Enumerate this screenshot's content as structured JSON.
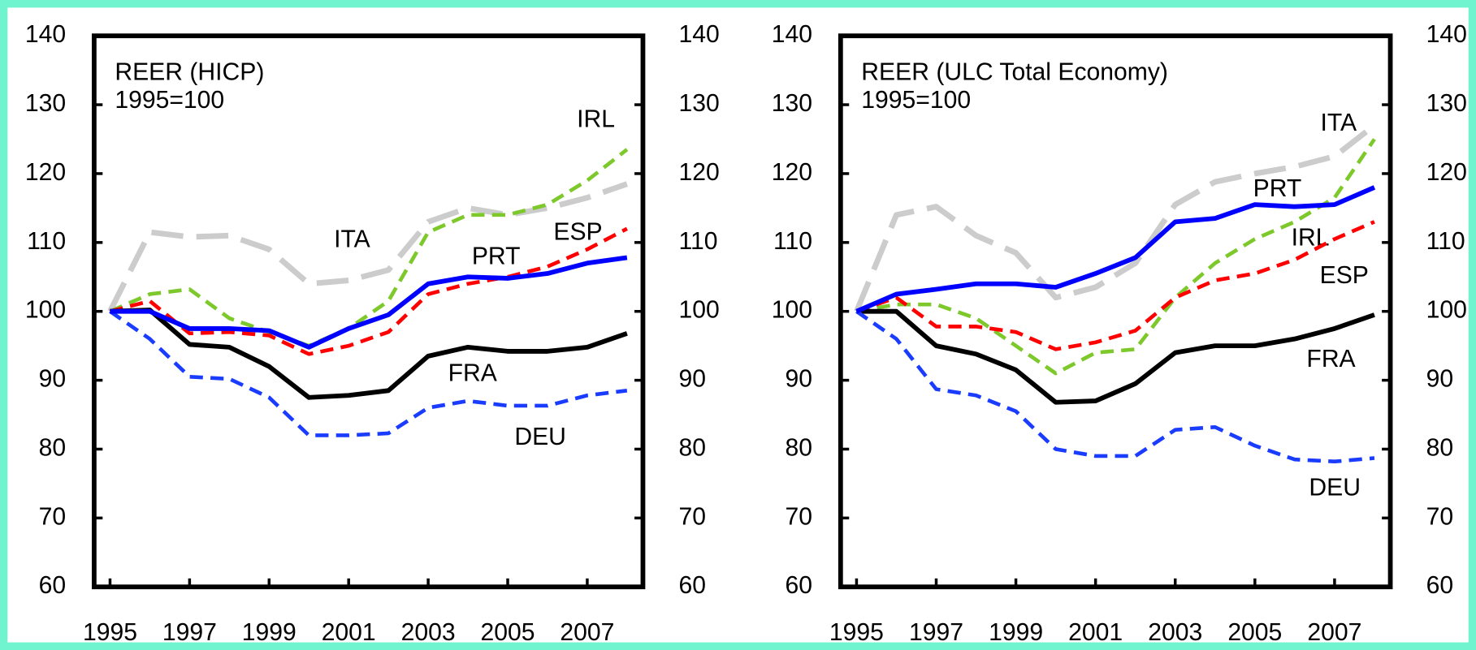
{
  "chart_data": [
    {
      "type": "line",
      "title": "REER (HICP)",
      "subtitle": "1995=100",
      "x": [
        1995,
        1996,
        1997,
        1998,
        1999,
        2000,
        2001,
        2002,
        2003,
        2004,
        2005,
        2006,
        2007,
        2008
      ],
      "xlim": [
        1994.6,
        2008.4
      ],
      "xticks": [
        1995,
        1997,
        1999,
        2001,
        2003,
        2005,
        2007
      ],
      "ylim": [
        60,
        140
      ],
      "yticks": [
        60,
        70,
        80,
        90,
        100,
        110,
        120,
        130,
        140
      ],
      "y2lim": [
        60,
        140
      ],
      "y2ticks": [
        60,
        70,
        80,
        90,
        100,
        110,
        120,
        130,
        140
      ],
      "series": [
        {
          "name": "ITA",
          "color": "#cccccc",
          "line": "longdash",
          "values": [
            100,
            111.5,
            110.8,
            111,
            109,
            104,
            104.5,
            106,
            113,
            115,
            114,
            115,
            116.5,
            118.5
          ]
        },
        {
          "name": "IRL",
          "color": "#7dc82a",
          "line": "dashed",
          "values": [
            100,
            102.5,
            103.2,
            99,
            97,
            95,
            97.5,
            101.5,
            111.5,
            114,
            114,
            115.5,
            119,
            123.5
          ]
        },
        {
          "name": "ESP",
          "color": "#ff0000",
          "line": "dashed",
          "values": [
            100,
            101.5,
            96.8,
            97,
            96.5,
            93.8,
            95,
            97,
            102.5,
            104,
            105,
            106.5,
            109,
            112
          ]
        },
        {
          "name": "FRA",
          "color": "#000000",
          "line": "solid",
          "values": [
            100,
            100.2,
            95.2,
            94.8,
            92,
            87.5,
            87.8,
            88.5,
            93.5,
            94.8,
            94.2,
            94.2,
            94.8,
            96.8
          ]
        },
        {
          "name": "DEU",
          "color": "#1a3cff",
          "line": "dashed",
          "values": [
            100,
            96,
            90.5,
            90.2,
            87.5,
            82,
            82,
            82.3,
            86,
            87,
            86.3,
            86.3,
            87.8,
            88.5
          ]
        },
        {
          "name": "PRT",
          "color": "#0000ff",
          "line": "solid",
          "values": [
            100,
            100,
            97.5,
            97.5,
            97.2,
            94.8,
            97.5,
            99.5,
            104,
            105,
            104.8,
            105.5,
            107,
            107.8
          ]
        }
      ]
    },
    {
      "type": "line",
      "title": "REER (ULC Total Economy)",
      "subtitle": "1995=100",
      "x": [
        1995,
        1996,
        1997,
        1998,
        1999,
        2000,
        2001,
        2002,
        2003,
        2004,
        2005,
        2006,
        2007,
        2008
      ],
      "xlim": [
        1994.6,
        2008.4
      ],
      "xticks": [
        1995,
        1997,
        1999,
        2001,
        2003,
        2005,
        2007
      ],
      "ylim": [
        60,
        140
      ],
      "yticks": [
        60,
        70,
        80,
        90,
        100,
        110,
        120,
        130,
        140
      ],
      "y2lim": [
        60,
        140
      ],
      "y2ticks": [
        60,
        70,
        80,
        90,
        100,
        110,
        120,
        130,
        140
      ],
      "series": [
        {
          "name": "ITA",
          "color": "#cccccc",
          "line": "longdash",
          "values": [
            100,
            114,
            115.2,
            111,
            108.5,
            102,
            103.5,
            107,
            115.5,
            118.8,
            120,
            121,
            122.5,
            127
          ]
        },
        {
          "name": "IRL",
          "color": "#7dc82a",
          "line": "dashed",
          "values": [
            100,
            101,
            101,
            99,
            95,
            91,
            94,
            94.5,
            102,
            107,
            110.5,
            113,
            116.5,
            125
          ]
        },
        {
          "name": "ESP",
          "color": "#ff0000",
          "line": "dashed",
          "values": [
            100,
            102,
            97.8,
            97.8,
            97,
            94.5,
            95.5,
            97.2,
            102,
            104.5,
            105.5,
            107.5,
            110.5,
            113
          ]
        },
        {
          "name": "FRA",
          "color": "#000000",
          "line": "solid",
          "values": [
            100,
            100,
            95,
            93.8,
            91.5,
            86.8,
            87,
            89.5,
            94,
            95,
            95,
            96,
            97.5,
            99.5
          ]
        },
        {
          "name": "DEU",
          "color": "#1a3cff",
          "line": "dashed",
          "values": [
            100,
            96,
            88.7,
            87.8,
            85.5,
            80,
            79,
            79,
            82.8,
            83.2,
            80.5,
            78.5,
            78.2,
            78.7
          ]
        },
        {
          "name": "PRT",
          "color": "#0000ff",
          "line": "solid",
          "values": [
            100,
            102.5,
            103.2,
            104,
            104,
            103.5,
            105.5,
            107.8,
            113,
            113.5,
            115.5,
            115.2,
            115.5,
            118
          ]
        }
      ]
    }
  ]
}
